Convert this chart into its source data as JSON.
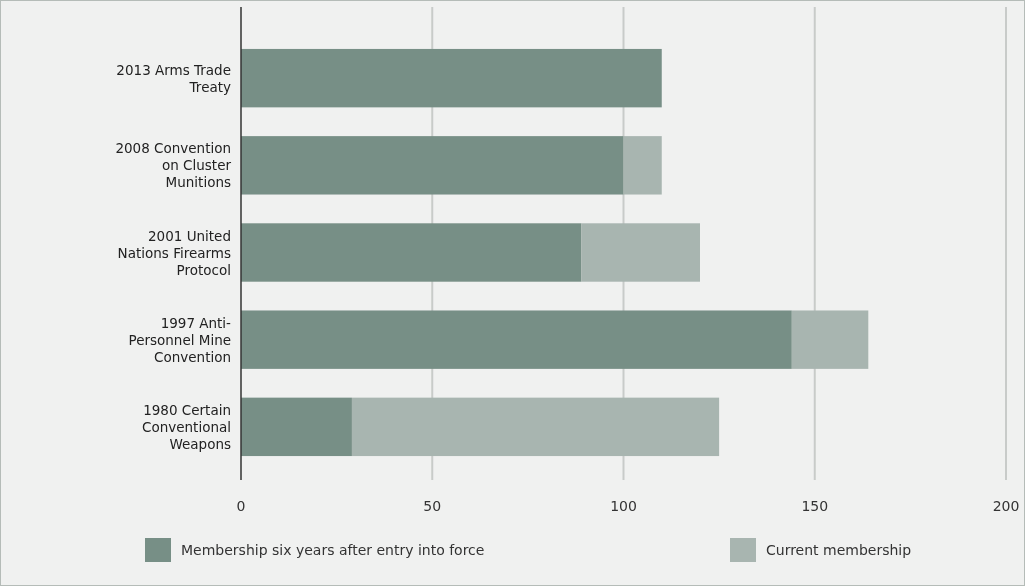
{
  "chart_data": {
    "type": "bar",
    "orientation": "horizontal",
    "stacked": true,
    "categories": [
      "2013 Arms Trade Treaty",
      "2008 Convention on Cluster Munitions",
      "2001 United Nations Firearms Protocol",
      "1997 Anti-Personnel Mine Convention",
      "1980 Certain Conventional Weapons"
    ],
    "series": [
      {
        "name": "Membership six years after entry into force",
        "color": "#778f86",
        "values": [
          110,
          100,
          89,
          144,
          29
        ]
      },
      {
        "name": "Current membership",
        "color": "#a8b5b0",
        "values": [
          0,
          10,
          31,
          20,
          96
        ]
      }
    ],
    "xlim": [
      0,
      200
    ],
    "xticks": [
      0,
      50,
      100,
      150,
      200
    ],
    "grid": "x",
    "legend": "bottom"
  }
}
